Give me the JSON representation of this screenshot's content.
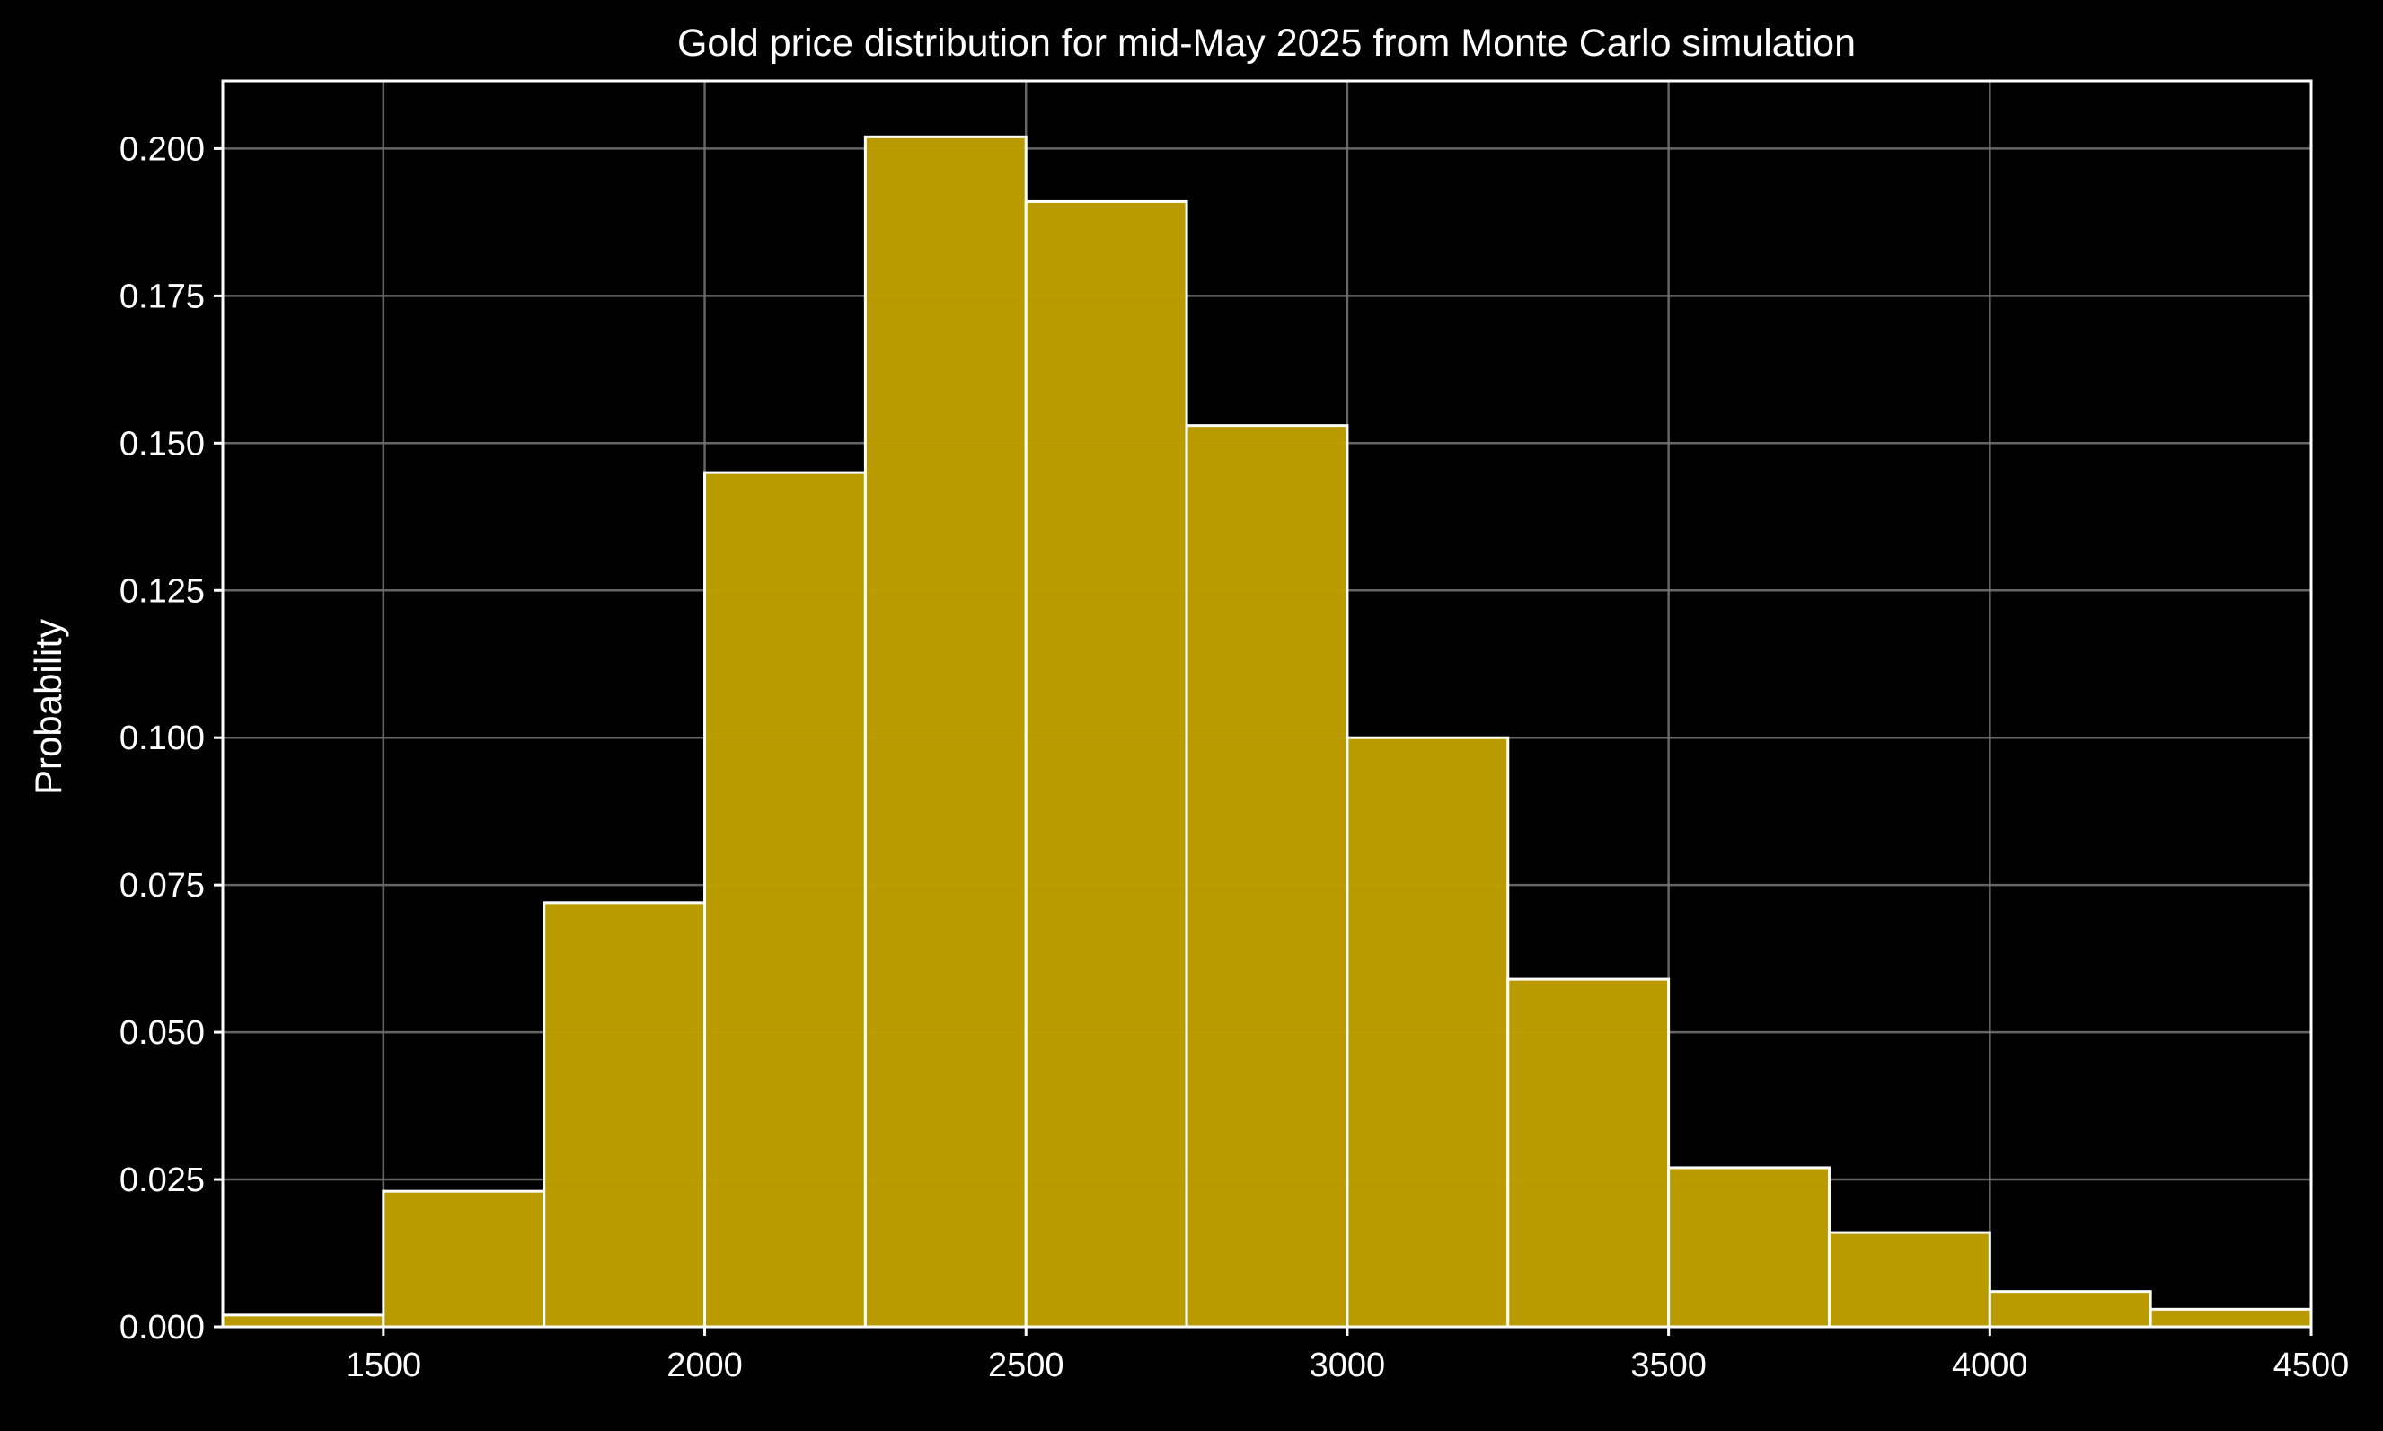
{
  "chart_data": {
    "type": "bar",
    "title": "Gold price distribution for mid-May 2025 from Monte Carlo simulation",
    "xlabel": "",
    "ylabel": "Probability",
    "xlim": [
      1250,
      4500
    ],
    "ylim": [
      0,
      0.2115
    ],
    "grid": true,
    "legend": "none",
    "bin_edges": [
      1250,
      1500,
      1750,
      2000,
      2250,
      2500,
      2750,
      3000,
      3250,
      3500,
      3750,
      4000,
      4250,
      4500
    ],
    "values": [
      0.002,
      0.023,
      0.072,
      0.145,
      0.202,
      0.191,
      0.153,
      0.1,
      0.059,
      0.027,
      0.016,
      0.006,
      0.003
    ],
    "xticks": [
      1500,
      2000,
      2500,
      3000,
      3500,
      4000,
      4500
    ],
    "xtick_labels": [
      "1500",
      "2000",
      "2500",
      "3000",
      "3500",
      "4000",
      "4500"
    ],
    "yticks": [
      0,
      0.025,
      0.05,
      0.075,
      0.1,
      0.125,
      0.15,
      0.175,
      0.2
    ],
    "ytick_labels": [
      "0.000",
      "0.025",
      "0.050",
      "0.075",
      "0.100",
      "0.125",
      "0.150",
      "0.175",
      "0.200"
    ],
    "colors": {
      "background": "#000000",
      "bar_fill": "#bfa000",
      "bar_edge": "#ffffff",
      "grid": "#777777",
      "axes": "#ffffff",
      "text": "#ffffff"
    }
  }
}
